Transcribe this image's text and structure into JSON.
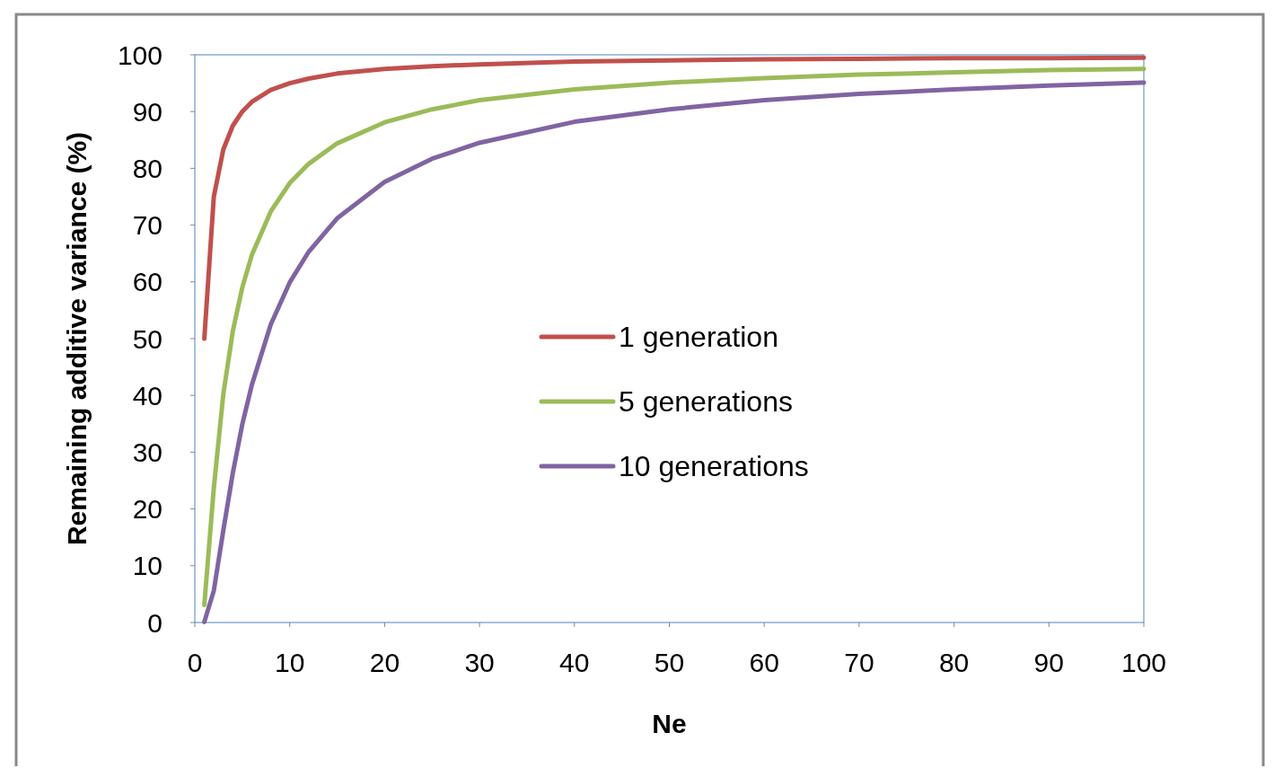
{
  "chart_data": {
    "type": "line",
    "xlabel": "Ne",
    "ylabel": "Remaining additive variance (%)",
    "x": [
      1,
      2,
      3,
      4,
      5,
      6,
      8,
      10,
      12,
      15,
      20,
      25,
      30,
      40,
      50,
      60,
      70,
      80,
      90,
      100
    ],
    "series": [
      {
        "name": "1 generation",
        "color": "#c0504d",
        "values": [
          50,
          75,
          83.3,
          87.5,
          90,
          91.7,
          93.8,
          95,
          95.8,
          96.7,
          97.5,
          98,
          98.3,
          98.8,
          99,
          99.2,
          99.3,
          99.4,
          99.4,
          99.5
        ]
      },
      {
        "name": "5 generations",
        "color": "#9bbb59",
        "values": [
          3.1,
          23.7,
          40.2,
          51.3,
          59,
          64.7,
          72.4,
          77.4,
          80.8,
          84.4,
          88.1,
          90.4,
          92,
          93.9,
          95.1,
          95.9,
          96.5,
          96.9,
          97.3,
          97.5
        ]
      },
      {
        "name": "10 generations",
        "color": "#8064a2",
        "values": [
          0.1,
          5.6,
          16.2,
          26.3,
          34.9,
          41.8,
          52.5,
          59.9,
          65.3,
          71.2,
          77.6,
          81.7,
          84.5,
          88.2,
          90.4,
          92,
          93.1,
          93.9,
          94.6,
          95.1
        ]
      }
    ],
    "xlim": [
      0,
      100
    ],
    "xticks": [
      0,
      10,
      20,
      30,
      40,
      50,
      60,
      70,
      80,
      90,
      100
    ],
    "ylim": [
      0,
      100
    ],
    "yticks": [
      0,
      10,
      20,
      30,
      40,
      50,
      60,
      70,
      80,
      90,
      100
    ],
    "grid": false,
    "legend": "center",
    "marker": "none",
    "line_style": "solid"
  }
}
